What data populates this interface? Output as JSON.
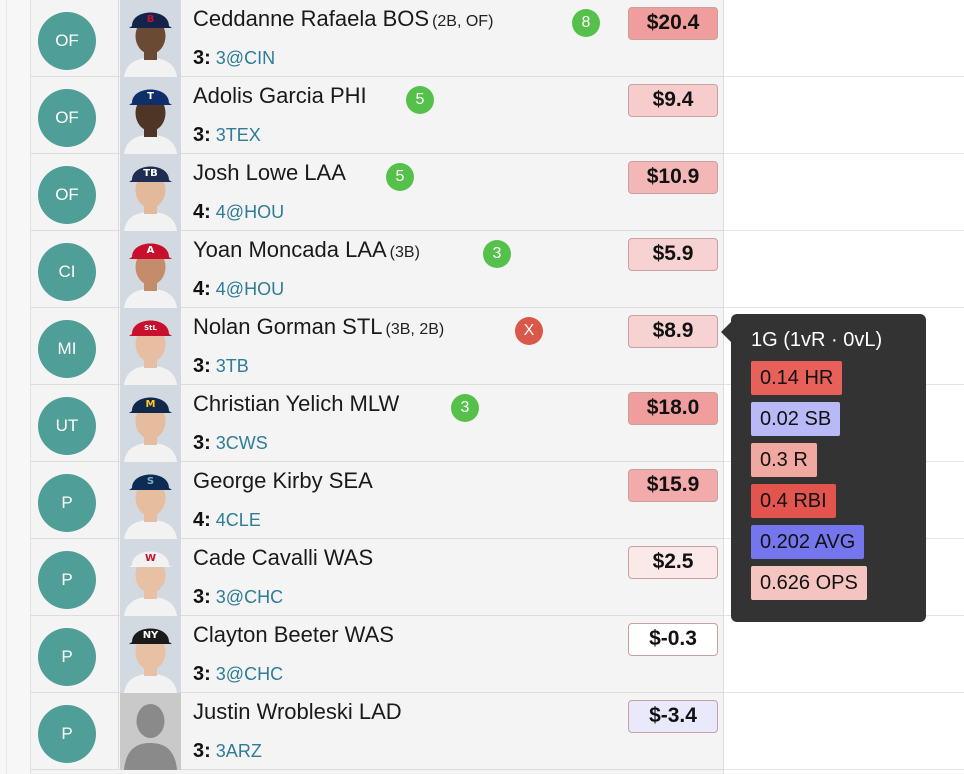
{
  "players": [
    {
      "pos": "OF",
      "name": "Ceddanne Rafaela BOS",
      "elig": "(2B, OF)",
      "rank": "8",
      "rank_color": "#55c04a",
      "games": "3:",
      "opp": "3@CIN",
      "value": "$20.4",
      "value_bg": "#ef9d9d",
      "team_color": "#12244a",
      "cap_letter": "B",
      "cap_letter_color": "#c8102e",
      "skin": "#6b4a33"
    },
    {
      "pos": "OF",
      "name": "Adolis Garcia PHI",
      "elig": "",
      "rank": "5",
      "rank_color": "#55c04a",
      "games": "3:",
      "opp": "3TEX",
      "value": "$9.4",
      "value_bg": "#f7cccc",
      "team_color": "#0f2f6a",
      "cap_letter": "T",
      "cap_letter_color": "#ffffff",
      "skin": "#4e3526"
    },
    {
      "pos": "OF",
      "name": "Josh Lowe LAA",
      "elig": "",
      "rank": "5",
      "rank_color": "#55c04a",
      "games": "4:",
      "opp": "4@HOU",
      "value": "$10.9",
      "value_bg": "#f4b7b7",
      "team_color": "#1f2d52",
      "cap_letter": "TB",
      "cap_letter_color": "#ffffff",
      "skin": "#e2b99a"
    },
    {
      "pos": "CI",
      "name": "Yoan Moncada LAA",
      "elig": "(3B)",
      "rank": "3",
      "rank_color": "#55c04a",
      "games": "4:",
      "opp": "4@HOU",
      "value": "$5.9",
      "value_bg": "#f7d2d2",
      "team_color": "#c8102e",
      "cap_letter": "A",
      "cap_letter_color": "#ffffff",
      "skin": "#c58c6c"
    },
    {
      "pos": "MI",
      "name": "Nolan Gorman STL",
      "elig": "(3B, 2B)",
      "rank": "X",
      "rank_color": "#d9584a",
      "games": "3:",
      "opp": "3TB",
      "value": "$8.9",
      "value_bg": "#f7d2d2",
      "team_color": "#c8102e",
      "cap_letter": "StL",
      "cap_letter_color": "#ffffff",
      "skin": "#e7bea2"
    },
    {
      "pos": "UT",
      "name": "Christian Yelich MLW",
      "elig": "",
      "rank": "3",
      "rank_color": "#55c04a",
      "games": "3:",
      "opp": "3CWS",
      "value": "$18.0",
      "value_bg": "#ef9d9d",
      "team_color": "#12284b",
      "cap_letter": "M",
      "cap_letter_color": "#ffc52f",
      "skin": "#e5bc9d"
    },
    {
      "pos": "P",
      "name": "George Kirby SEA",
      "elig": "",
      "rank": "",
      "rank_color": "",
      "games": "4:",
      "opp": "4CLE",
      "value": "$15.9",
      "value_bg": "#f2aaaa",
      "team_color": "#0c2c56",
      "cap_letter": "S",
      "cap_letter_color": "#7fb3b8",
      "skin": "#e6bd9f"
    },
    {
      "pos": "P",
      "name": "Cade Cavalli WAS",
      "elig": "",
      "rank": "",
      "rank_color": "",
      "games": "3:",
      "opp": "3@CHC",
      "value": "$2.5",
      "value_bg": "#fbe8e8",
      "team_color": "#f2f2f2",
      "cap_letter": "W",
      "cap_letter_color": "#c8102e",
      "skin": "#e8c0a3"
    },
    {
      "pos": "P",
      "name": "Clayton Beeter WAS",
      "elig": "",
      "rank": "",
      "rank_color": "",
      "games": "3:",
      "opp": "3@CHC",
      "value": "$-0.3",
      "value_bg": "#ffffff",
      "team_color": "#1a1a1a",
      "cap_letter": "NY",
      "cap_letter_color": "#ffffff",
      "skin": "#e8c0a3"
    },
    {
      "pos": "P",
      "name": "Justin Wrobleski LAD",
      "elig": "",
      "rank": "",
      "rank_color": "",
      "games": "3:",
      "opp": "3ARZ",
      "value": "$-3.4",
      "value_bg": "#e9e9fb",
      "team_color": "",
      "cap_letter": "",
      "cap_letter_color": "",
      "skin": ""
    }
  ],
  "tooltip": {
    "title": "1G (1vR · 0vL)",
    "stats": [
      {
        "label": "0.14 HR",
        "bg": "#e8605a"
      },
      {
        "label": "0.02 SB",
        "bg": "#b9b9f7"
      },
      {
        "label": "0.3 R",
        "bg": "#f0a8a0"
      },
      {
        "label": "0.4 RBI",
        "bg": "#e3544e"
      },
      {
        "label": "0.202 AVG",
        "bg": "#7575ee"
      },
      {
        "label": "0.626 OPS",
        "bg": "#f5c4c0"
      }
    ]
  }
}
